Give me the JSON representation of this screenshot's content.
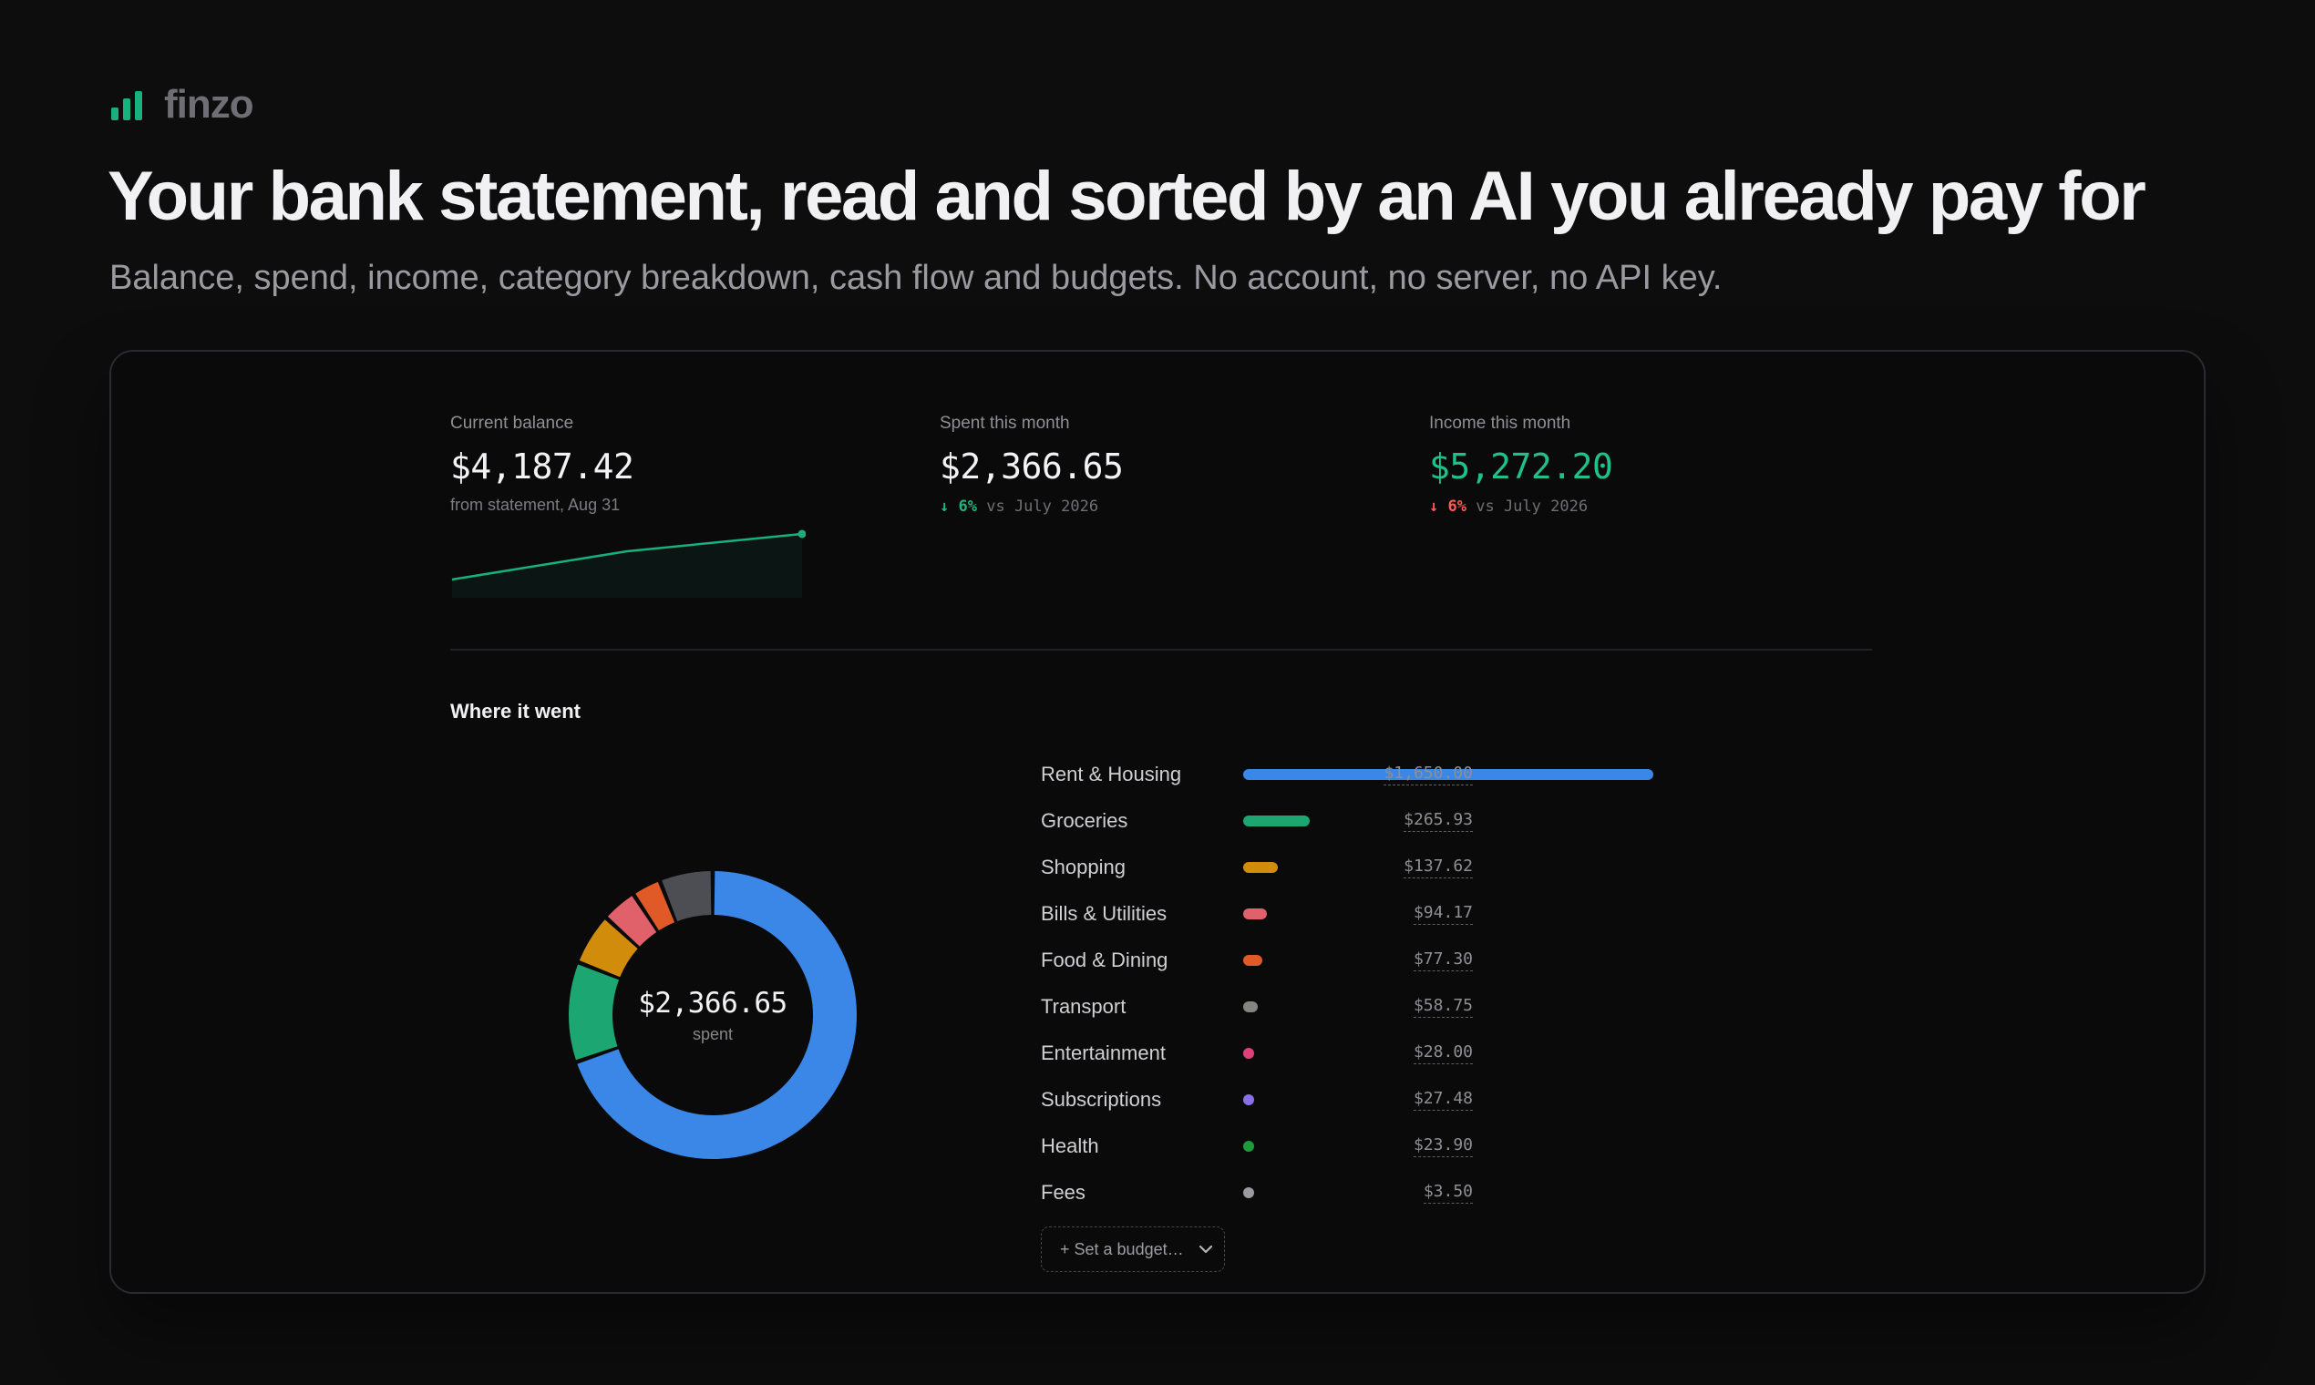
{
  "app": {
    "name": "finzo",
    "brand_color": "#18b07c"
  },
  "hero": {
    "headline": "Your bank statement, read and sorted by an AI you already pay for",
    "subline": "Balance, spend, income, category breakdown, cash flow and budgets. No account, no server, no API key."
  },
  "stats": {
    "balance": {
      "label": "Current balance",
      "value": "$4,187.42",
      "sub": "from statement, Aug 31",
      "trend": [
        0,
        0.62,
        1.0
      ]
    },
    "spent": {
      "label": "Spent this month",
      "value": "$2,366.65",
      "delta_arrow": "↓",
      "delta_pct": "6%",
      "delta_text": "vs July 2026"
    },
    "income": {
      "label": "Income this month",
      "value": "$5,272.20",
      "delta_arrow": "↓",
      "delta_pct": "6%",
      "delta_text": "vs July 2026"
    }
  },
  "breakdown": {
    "title": "Where it went",
    "total": "$2,366.65",
    "total_sub": "spent",
    "categories": [
      {
        "name": "Rent & Housing",
        "amount": "$1,650.00",
        "value": 1650.0,
        "color": "#3b87e8"
      },
      {
        "name": "Groceries",
        "amount": "$265.93",
        "value": 265.93,
        "color": "#1ba672"
      },
      {
        "name": "Shopping",
        "amount": "$137.62",
        "value": 137.62,
        "color": "#d18c0c"
      },
      {
        "name": "Bills & Utilities",
        "amount": "$94.17",
        "value": 94.17,
        "color": "#e0616a"
      },
      {
        "name": "Food & Dining",
        "amount": "$77.30",
        "value": 77.3,
        "color": "#df5a27"
      },
      {
        "name": "Transport",
        "amount": "$58.75",
        "value": 58.75,
        "color": "#85857f"
      },
      {
        "name": "Entertainment",
        "amount": "$28.00",
        "value": 28.0,
        "color": "#e0407a"
      },
      {
        "name": "Subscriptions",
        "amount": "$27.48",
        "value": 27.48,
        "color": "#8a70e6"
      },
      {
        "name": "Health",
        "amount": "$23.90",
        "value": 23.9,
        "color": "#1d9c3a"
      },
      {
        "name": "Fees",
        "amount": "$3.50",
        "value": 3.5,
        "color": "#9a9aa0"
      }
    ],
    "donut_other_color": "#4d4d54",
    "budget_button": "+ Set a budget…"
  }
}
